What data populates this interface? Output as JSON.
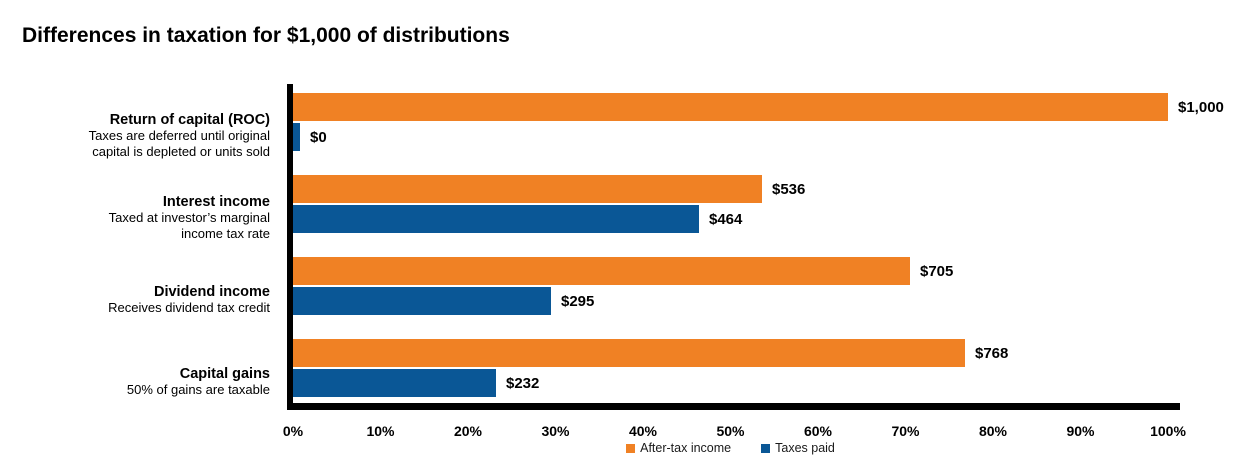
{
  "page": {
    "title": "Differences in taxation for $1,000 of distributions"
  },
  "chart_data": {
    "type": "bar",
    "orientation": "horizontal",
    "title": "Differences in taxation for $1,000 of distributions",
    "categories": [
      {
        "name": "Return of capital (ROC)",
        "description": [
          "Taxes are deferred until original",
          "capital is depleted or units sold"
        ]
      },
      {
        "name": "Interest income",
        "description": [
          "Taxed at investor’s marginal",
          "income tax rate"
        ]
      },
      {
        "name": "Dividend income",
        "description": [
          "Receives dividend tax credit"
        ]
      },
      {
        "name": "Capital gains",
        "description": [
          "50% of gains are taxable"
        ]
      }
    ],
    "series": [
      {
        "name": "After-tax income",
        "color": "#F08124",
        "values": [
          1000,
          536,
          705,
          768
        ],
        "labels": [
          "$1,000",
          "$536",
          "$705",
          "$768"
        ]
      },
      {
        "name": "Taxes paid",
        "color": "#0A5796",
        "values": [
          0,
          464,
          295,
          232
        ],
        "labels": [
          "$0",
          "$464",
          "$295",
          "$232"
        ]
      }
    ],
    "x_axis": {
      "min": 0,
      "max": 100,
      "tick_step": 10,
      "ticks": [
        "0%",
        "10%",
        "20%",
        "30%",
        "40%",
        "50%",
        "60%",
        "70%",
        "80%",
        "90%",
        "100%"
      ]
    },
    "legend": {
      "position": "bottom-center",
      "entries": [
        "After-tax income",
        "Taxes paid"
      ]
    },
    "grid": false,
    "total_per_group": 1000,
    "colors": {
      "after_tax_income": "#F08124",
      "taxes_paid": "#0A5796",
      "axis": "#000000",
      "background": "#FFFFFF",
      "text": "#000000"
    }
  }
}
